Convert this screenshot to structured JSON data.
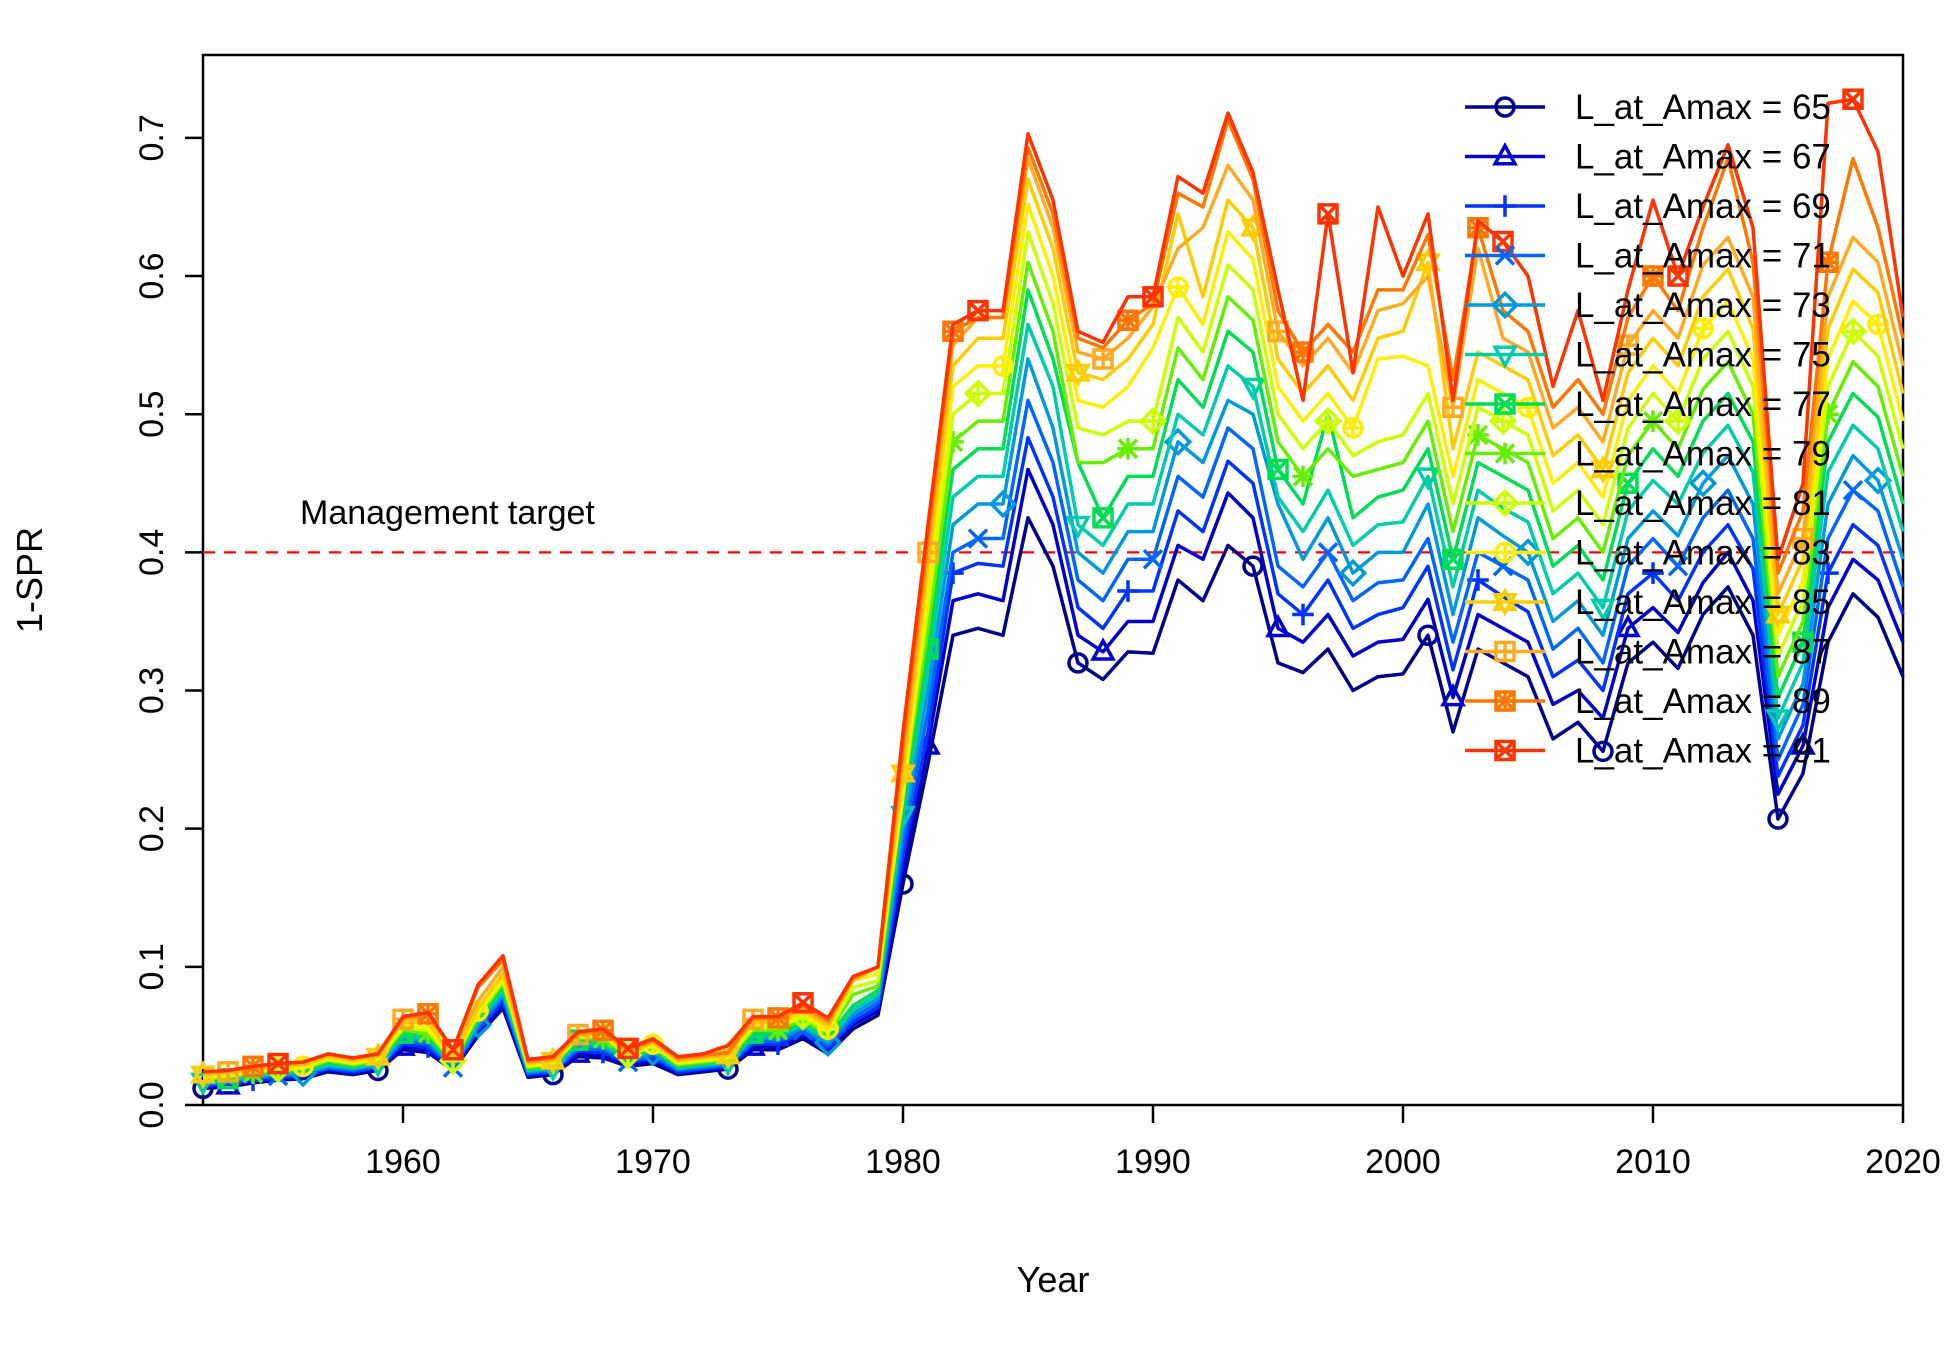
{
  "chart_data": {
    "type": "line",
    "xlabel": "Year",
    "ylabel": "1-SPR",
    "xlim": [
      1952,
      2020
    ],
    "ylim": [
      0,
      0.76
    ],
    "x_ticks": [
      1960,
      1970,
      1980,
      1990,
      2000,
      2010,
      2020
    ],
    "y_ticks": [
      0.0,
      0.1,
      0.2,
      0.3,
      0.4,
      0.5,
      0.6,
      0.7
    ],
    "y_tick_labels": [
      "0.0",
      "0.1",
      "0.2",
      "0.3",
      "0.4",
      "0.5",
      "0.6",
      "0.7"
    ],
    "reference_line": {
      "value": 0.4,
      "label": "Management target",
      "color": "#ff0000",
      "style": "dashed"
    },
    "legend_position": "top-right",
    "x": [
      1952,
      1953,
      1954,
      1955,
      1956,
      1957,
      1958,
      1959,
      1960,
      1961,
      1962,
      1963,
      1964,
      1965,
      1966,
      1967,
      1968,
      1969,
      1970,
      1971,
      1972,
      1973,
      1974,
      1975,
      1976,
      1977,
      1978,
      1979,
      1980,
      1981,
      1982,
      1983,
      1984,
      1985,
      1986,
      1987,
      1988,
      1989,
      1990,
      1991,
      1992,
      1993,
      1994,
      1995,
      1996,
      1997,
      1998,
      1999,
      2000,
      2001,
      2002,
      2003,
      2004,
      2005,
      2006,
      2007,
      2008,
      2009,
      2010,
      2011,
      2012,
      2013,
      2014,
      2015,
      2016,
      2017,
      2018,
      2019,
      2020
    ],
    "series": [
      {
        "name": "L_at_Amax = 65",
        "color": "#00008b",
        "marker": "circle",
        "values": [
          0.012,
          0.013,
          0.016,
          0.018,
          0.019,
          0.024,
          0.022,
          0.025,
          0.04,
          0.038,
          0.025,
          0.05,
          0.07,
          0.02,
          0.022,
          0.035,
          0.034,
          0.028,
          0.03,
          0.022,
          0.024,
          0.026,
          0.04,
          0.04,
          0.048,
          0.037,
          0.055,
          0.065,
          0.16,
          0.247,
          0.34,
          0.345,
          0.34,
          0.425,
          0.39,
          0.32,
          0.308,
          0.328,
          0.327,
          0.38,
          0.365,
          0.405,
          0.39,
          0.32,
          0.313,
          0.33,
          0.3,
          0.31,
          0.312,
          0.34,
          0.27,
          0.33,
          0.32,
          0.31,
          0.265,
          0.277,
          0.256,
          0.32,
          0.335,
          0.316,
          0.355,
          0.375,
          0.34,
          0.207,
          0.24,
          0.335,
          0.37,
          0.353,
          0.31
        ]
      },
      {
        "name": "L_at_Amax = 67",
        "color": "#0000cd",
        "marker": "triangle",
        "values": [
          0.013,
          0.014,
          0.017,
          0.019,
          0.02,
          0.025,
          0.023,
          0.026,
          0.042,
          0.04,
          0.025,
          0.052,
          0.072,
          0.021,
          0.023,
          0.037,
          0.036,
          0.029,
          0.032,
          0.023,
          0.025,
          0.027,
          0.042,
          0.042,
          0.05,
          0.039,
          0.058,
          0.068,
          0.17,
          0.26,
          0.365,
          0.37,
          0.365,
          0.46,
          0.42,
          0.34,
          0.328,
          0.35,
          0.35,
          0.405,
          0.395,
          0.443,
          0.425,
          0.345,
          0.335,
          0.355,
          0.325,
          0.335,
          0.337,
          0.366,
          0.295,
          0.355,
          0.345,
          0.335,
          0.29,
          0.3,
          0.28,
          0.345,
          0.36,
          0.342,
          0.378,
          0.4,
          0.365,
          0.225,
          0.26,
          0.36,
          0.395,
          0.38,
          0.335
        ]
      },
      {
        "name": "L_at_Amax = 69",
        "color": "#0033ff",
        "marker": "plus",
        "values": [
          0.014,
          0.015,
          0.018,
          0.02,
          0.021,
          0.026,
          0.024,
          0.027,
          0.044,
          0.042,
          0.026,
          0.054,
          0.075,
          0.022,
          0.024,
          0.039,
          0.038,
          0.03,
          0.034,
          0.024,
          0.026,
          0.028,
          0.044,
          0.044,
          0.052,
          0.041,
          0.06,
          0.071,
          0.18,
          0.27,
          0.385,
          0.392,
          0.39,
          0.483,
          0.44,
          0.36,
          0.345,
          0.372,
          0.372,
          0.43,
          0.415,
          0.466,
          0.45,
          0.37,
          0.355,
          0.38,
          0.345,
          0.355,
          0.36,
          0.39,
          0.315,
          0.38,
          0.368,
          0.357,
          0.31,
          0.322,
          0.3,
          0.37,
          0.385,
          0.365,
          0.4,
          0.42,
          0.388,
          0.238,
          0.275,
          0.385,
          0.42,
          0.405,
          0.355
        ]
      },
      {
        "name": "L_at_Amax = 71",
        "color": "#0066ff",
        "marker": "x",
        "values": [
          0.015,
          0.016,
          0.019,
          0.021,
          0.022,
          0.027,
          0.025,
          0.028,
          0.046,
          0.044,
          0.027,
          0.056,
          0.078,
          0.023,
          0.025,
          0.041,
          0.04,
          0.031,
          0.036,
          0.025,
          0.027,
          0.029,
          0.046,
          0.046,
          0.054,
          0.043,
          0.063,
          0.074,
          0.19,
          0.285,
          0.4,
          0.41,
          0.41,
          0.51,
          0.465,
          0.38,
          0.365,
          0.395,
          0.395,
          0.455,
          0.44,
          0.49,
          0.475,
          0.39,
          0.375,
          0.4,
          0.365,
          0.378,
          0.38,
          0.41,
          0.335,
          0.4,
          0.39,
          0.38,
          0.33,
          0.345,
          0.32,
          0.39,
          0.41,
          0.39,
          0.425,
          0.445,
          0.41,
          0.25,
          0.29,
          0.41,
          0.445,
          0.43,
          0.375
        ]
      },
      {
        "name": "L_at_Amax = 73",
        "color": "#0099dd",
        "marker": "diamond",
        "values": [
          0.016,
          0.017,
          0.02,
          0.022,
          0.023,
          0.028,
          0.026,
          0.029,
          0.048,
          0.046,
          0.028,
          0.058,
          0.08,
          0.024,
          0.026,
          0.043,
          0.042,
          0.032,
          0.038,
          0.026,
          0.028,
          0.03,
          0.048,
          0.048,
          0.056,
          0.045,
          0.066,
          0.077,
          0.2,
          0.3,
          0.42,
          0.435,
          0.435,
          0.54,
          0.49,
          0.4,
          0.385,
          0.415,
          0.415,
          0.48,
          0.465,
          0.51,
          0.5,
          0.435,
          0.395,
          0.425,
          0.385,
          0.4,
          0.4,
          0.435,
          0.355,
          0.425,
          0.412,
          0.4,
          0.35,
          0.365,
          0.34,
          0.41,
          0.43,
          0.412,
          0.45,
          0.47,
          0.435,
          0.265,
          0.305,
          0.435,
          0.47,
          0.452,
          0.395
        ]
      },
      {
        "name": "L_at_Amax = 75",
        "color": "#00ccaa",
        "marker": "triangle-down",
        "values": [
          0.017,
          0.018,
          0.021,
          0.023,
          0.024,
          0.029,
          0.027,
          0.03,
          0.05,
          0.048,
          0.029,
          0.06,
          0.083,
          0.025,
          0.027,
          0.045,
          0.044,
          0.033,
          0.04,
          0.027,
          0.029,
          0.031,
          0.05,
          0.05,
          0.058,
          0.047,
          0.069,
          0.08,
          0.21,
          0.315,
          0.44,
          0.455,
          0.455,
          0.565,
          0.52,
          0.42,
          0.405,
          0.435,
          0.435,
          0.5,
          0.485,
          0.535,
          0.52,
          0.44,
          0.415,
          0.445,
          0.405,
          0.42,
          0.422,
          0.455,
          0.375,
          0.445,
          0.432,
          0.422,
          0.37,
          0.385,
          0.36,
          0.43,
          0.452,
          0.435,
          0.472,
          0.492,
          0.458,
          0.28,
          0.32,
          0.458,
          0.492,
          0.475,
          0.415
        ]
      },
      {
        "name": "L_at_Amax = 77",
        "color": "#00dd55",
        "marker": "square-x",
        "values": [
          0.018,
          0.019,
          0.022,
          0.024,
          0.025,
          0.031,
          0.028,
          0.031,
          0.052,
          0.05,
          0.03,
          0.062,
          0.086,
          0.026,
          0.028,
          0.047,
          0.046,
          0.034,
          0.041,
          0.028,
          0.03,
          0.032,
          0.052,
          0.052,
          0.06,
          0.049,
          0.072,
          0.083,
          0.22,
          0.33,
          0.46,
          0.475,
          0.475,
          0.59,
          0.54,
          0.465,
          0.425,
          0.455,
          0.455,
          0.525,
          0.505,
          0.56,
          0.545,
          0.46,
          0.435,
          0.5,
          0.425,
          0.44,
          0.445,
          0.475,
          0.395,
          0.465,
          0.455,
          0.445,
          0.39,
          0.405,
          0.38,
          0.45,
          0.475,
          0.455,
          0.495,
          0.515,
          0.48,
          0.295,
          0.335,
          0.48,
          0.515,
          0.498,
          0.435
        ]
      },
      {
        "name": "L_at_Amax = 79",
        "color": "#66ee00",
        "marker": "asterisk",
        "values": [
          0.019,
          0.02,
          0.023,
          0.025,
          0.026,
          0.032,
          0.029,
          0.032,
          0.054,
          0.052,
          0.031,
          0.064,
          0.088,
          0.027,
          0.029,
          0.048,
          0.048,
          0.035,
          0.042,
          0.029,
          0.031,
          0.033,
          0.054,
          0.054,
          0.062,
          0.051,
          0.08,
          0.086,
          0.225,
          0.345,
          0.48,
          0.495,
          0.495,
          0.61,
          0.56,
          0.465,
          0.465,
          0.475,
          0.475,
          0.548,
          0.525,
          0.585,
          0.568,
          0.48,
          0.455,
          0.475,
          0.455,
          0.46,
          0.465,
          0.495,
          0.415,
          0.485,
          0.475,
          0.465,
          0.41,
          0.425,
          0.4,
          0.47,
          0.495,
          0.475,
          0.518,
          0.538,
          0.5,
          0.31,
          0.35,
          0.5,
          0.538,
          0.52,
          0.455
        ]
      },
      {
        "name": "L_at_Amax = 81",
        "color": "#ccff00",
        "marker": "diamond-plus",
        "values": [
          0.02,
          0.021,
          0.024,
          0.026,
          0.027,
          0.033,
          0.03,
          0.033,
          0.056,
          0.054,
          0.032,
          0.066,
          0.09,
          0.028,
          0.03,
          0.049,
          0.05,
          0.036,
          0.043,
          0.03,
          0.032,
          0.034,
          0.056,
          0.056,
          0.064,
          0.053,
          0.085,
          0.09,
          0.23,
          0.36,
          0.5,
          0.515,
          0.515,
          0.632,
          0.58,
          0.49,
          0.485,
          0.495,
          0.495,
          0.57,
          0.545,
          0.608,
          0.59,
          0.5,
          0.475,
          0.495,
          0.47,
          0.48,
          0.485,
          0.515,
          0.435,
          0.505,
          0.495,
          0.485,
          0.43,
          0.445,
          0.42,
          0.49,
          0.515,
          0.495,
          0.54,
          0.56,
          0.52,
          0.325,
          0.365,
          0.52,
          0.56,
          0.542,
          0.475
        ]
      },
      {
        "name": "L_at_Amax = 83",
        "color": "#ffee00",
        "marker": "circle-plus",
        "values": [
          0.021,
          0.022,
          0.025,
          0.027,
          0.028,
          0.034,
          0.031,
          0.034,
          0.058,
          0.056,
          0.033,
          0.068,
          0.092,
          0.029,
          0.031,
          0.05,
          0.051,
          0.037,
          0.044,
          0.031,
          0.033,
          0.035,
          0.058,
          0.058,
          0.066,
          0.055,
          0.09,
          0.095,
          0.223,
          0.375,
          0.52,
          0.535,
          0.535,
          0.652,
          0.6,
          0.51,
          0.505,
          0.52,
          0.548,
          0.592,
          0.565,
          0.632,
          0.612,
          0.52,
          0.495,
          0.515,
          0.49,
          0.54,
          0.542,
          0.535,
          0.455,
          0.525,
          0.515,
          0.505,
          0.45,
          0.465,
          0.44,
          0.51,
          0.535,
          0.515,
          0.562,
          0.582,
          0.54,
          0.34,
          0.38,
          0.54,
          0.582,
          0.565,
          0.495
        ]
      },
      {
        "name": "L_at_Amax = 85",
        "color": "#ffcc00",
        "marker": "star-triangle",
        "values": [
          0.022,
          0.023,
          0.026,
          0.028,
          0.029,
          0.035,
          0.032,
          0.035,
          0.06,
          0.06,
          0.034,
          0.07,
          0.095,
          0.03,
          0.032,
          0.05,
          0.052,
          0.038,
          0.045,
          0.032,
          0.034,
          0.036,
          0.06,
          0.06,
          0.068,
          0.057,
          0.09,
          0.1,
          0.24,
          0.39,
          0.535,
          0.555,
          0.555,
          0.67,
          0.62,
          0.53,
          0.525,
          0.54,
          0.565,
          0.645,
          0.585,
          0.655,
          0.635,
          0.54,
          0.515,
          0.535,
          0.51,
          0.555,
          0.56,
          0.61,
          0.475,
          0.545,
          0.535,
          0.525,
          0.47,
          0.485,
          0.46,
          0.53,
          0.555,
          0.535,
          0.585,
          0.605,
          0.562,
          0.355,
          0.395,
          0.562,
          0.605,
          0.588,
          0.515
        ]
      },
      {
        "name": "L_at_Amax = 87",
        "color": "#ffaa22",
        "marker": "square-plus",
        "values": [
          0.023,
          0.024,
          0.027,
          0.029,
          0.03,
          0.036,
          0.033,
          0.036,
          0.062,
          0.064,
          0.04,
          0.075,
          0.1,
          0.031,
          0.033,
          0.051,
          0.053,
          0.039,
          0.046,
          0.033,
          0.035,
          0.037,
          0.062,
          0.062,
          0.07,
          0.059,
          0.091,
          0.1,
          0.25,
          0.4,
          0.55,
          0.57,
          0.57,
          0.685,
          0.635,
          0.545,
          0.54,
          0.555,
          0.578,
          0.62,
          0.635,
          0.68,
          0.655,
          0.56,
          0.535,
          0.555,
          0.53,
          0.575,
          0.58,
          0.6,
          0.505,
          0.62,
          0.555,
          0.545,
          0.49,
          0.505,
          0.48,
          0.55,
          0.575,
          0.555,
          0.608,
          0.628,
          0.585,
          0.37,
          0.41,
          0.585,
          0.628,
          0.61,
          0.535
        ]
      },
      {
        "name": "L_at_Amax = 89",
        "color": "#ff7700",
        "marker": "star-square",
        "values": [
          0.024,
          0.025,
          0.028,
          0.03,
          0.031,
          0.037,
          0.034,
          0.037,
          0.063,
          0.066,
          0.04,
          0.085,
          0.105,
          0.032,
          0.034,
          0.052,
          0.054,
          0.04,
          0.047,
          0.034,
          0.036,
          0.038,
          0.063,
          0.063,
          0.072,
          0.061,
          0.092,
          0.1,
          0.26,
          0.41,
          0.56,
          0.57,
          0.57,
          0.693,
          0.645,
          0.555,
          0.548,
          0.568,
          0.58,
          0.66,
          0.65,
          0.713,
          0.67,
          0.575,
          0.545,
          0.565,
          0.545,
          0.59,
          0.59,
          0.63,
          0.525,
          0.635,
          0.575,
          0.56,
          0.505,
          0.525,
          0.5,
          0.57,
          0.6,
          0.575,
          0.635,
          0.685,
          0.61,
          0.385,
          0.43,
          0.61,
          0.685,
          0.635,
          0.555
        ]
      },
      {
        "name": "L_at_Amax = 91",
        "color": "#ff3300",
        "marker": "square-cross",
        "values": [
          0.024,
          0.025,
          0.028,
          0.03,
          0.031,
          0.037,
          0.034,
          0.037,
          0.064,
          0.067,
          0.04,
          0.087,
          0.108,
          0.033,
          0.035,
          0.053,
          0.055,
          0.041,
          0.048,
          0.035,
          0.037,
          0.043,
          0.064,
          0.064,
          0.074,
          0.063,
          0.093,
          0.1,
          0.27,
          0.42,
          0.565,
          0.575,
          0.575,
          0.703,
          0.655,
          0.56,
          0.552,
          0.585,
          0.585,
          0.672,
          0.66,
          0.718,
          0.675,
          0.59,
          0.51,
          0.645,
          0.53,
          0.65,
          0.6,
          0.645,
          0.51,
          0.64,
          0.625,
          0.6,
          0.52,
          0.575,
          0.51,
          0.59,
          0.655,
          0.6,
          0.65,
          0.695,
          0.635,
          0.395,
          0.45,
          0.725,
          0.728,
          0.69,
          0.57
        ]
      }
    ]
  }
}
